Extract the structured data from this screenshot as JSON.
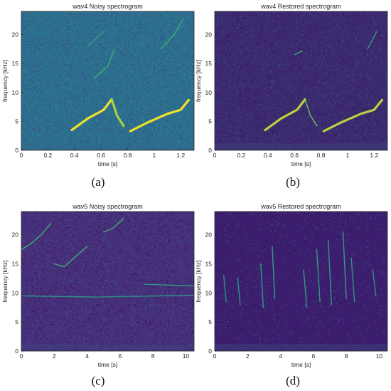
{
  "figure": {
    "captions": [
      "(a)",
      "(b)",
      "(c)",
      "(d)"
    ]
  },
  "chart_data": [
    {
      "type": "heatmap",
      "title": "wav4 Noisy spectrogram",
      "xlabel": "time [s]",
      "ylabel": "frequency [kHz]",
      "xlim": [
        0,
        1.3
      ],
      "ylim": [
        0,
        24
      ],
      "xticks": [
        "0",
        "0.2",
        "0.4",
        "0.6",
        "0.8",
        "1",
        "1.2"
      ],
      "yticks": [
        "0",
        "5",
        "10",
        "15",
        "20"
      ],
      "colormap": "viridis",
      "background": "#2d6e8e",
      "calls": [
        {
          "x": [
            0.38,
            0.5,
            0.62,
            0.68
          ],
          "y": [
            3.5,
            5.5,
            7.0,
            8.8
          ],
          "intensity": 1.0
        },
        {
          "x": [
            0.68,
            0.72,
            0.77
          ],
          "y": [
            8.8,
            6.0,
            4.2
          ],
          "intensity": 0.8
        },
        {
          "x": [
            0.82,
            0.95,
            1.1,
            1.2,
            1.26
          ],
          "y": [
            3.3,
            4.8,
            6.3,
            7.0,
            8.7
          ],
          "intensity": 1.0
        },
        {
          "x": [
            0.55,
            0.65,
            0.7
          ],
          "y": [
            12.5,
            14.5,
            17.5
          ],
          "intensity": 0.45
        },
        {
          "x": [
            1.05,
            1.15,
            1.22
          ],
          "y": [
            17.5,
            20.0,
            22.8
          ],
          "intensity": 0.45
        },
        {
          "x": [
            0.5,
            0.62
          ],
          "y": [
            18.0,
            20.5
          ],
          "intensity": 0.35
        }
      ]
    },
    {
      "type": "heatmap",
      "title": "wav4 Restored spectrogram",
      "xlabel": "time [s]",
      "ylabel": "frequency [kHz]",
      "xlim": [
        0,
        1.3
      ],
      "ylim": [
        0,
        24
      ],
      "xticks": [
        "0",
        "0.2",
        "0.4",
        "0.6",
        "0.8",
        "1",
        "1.2"
      ],
      "yticks": [
        "0",
        "5",
        "10",
        "15",
        "20"
      ],
      "colormap": "viridis",
      "background": "#3b2a6e",
      "calls": [
        {
          "x": [
            0.38,
            0.5,
            0.62,
            0.68
          ],
          "y": [
            3.5,
            5.5,
            7.0,
            8.8
          ],
          "intensity": 0.85
        },
        {
          "x": [
            0.68,
            0.72,
            0.77
          ],
          "y": [
            8.8,
            6.0,
            4.2
          ],
          "intensity": 0.65
        },
        {
          "x": [
            0.82,
            0.95,
            1.1,
            1.2,
            1.26
          ],
          "y": [
            3.3,
            4.8,
            6.3,
            7.0,
            8.7
          ],
          "intensity": 0.85
        },
        {
          "x": [
            0.6,
            0.66
          ],
          "y": [
            16.5,
            17.2
          ],
          "intensity": 0.4
        },
        {
          "x": [
            1.15,
            1.22
          ],
          "y": [
            17.5,
            20.5
          ],
          "intensity": 0.35
        }
      ]
    },
    {
      "type": "heatmap",
      "title": "wav5 Noisy spectrogram",
      "xlabel": "time [s]",
      "ylabel": "frequency [kHz]",
      "xlim": [
        0,
        10.5
      ],
      "ylim": [
        0,
        24
      ],
      "xticks": [
        "0",
        "2",
        "4",
        "6",
        "8",
        "10"
      ],
      "yticks": [
        "0",
        "5",
        "10",
        "15",
        "20"
      ],
      "colormap": "viridis",
      "background": "#46307a",
      "calls": [
        {
          "x": [
            0.0,
            0.6,
            1.2,
            1.8
          ],
          "y": [
            17.5,
            18.5,
            20.0,
            22.0
          ],
          "intensity": 0.45
        },
        {
          "x": [
            2.0,
            2.6,
            3.2,
            4.0
          ],
          "y": [
            15.0,
            14.5,
            16.0,
            18.0
          ],
          "intensity": 0.45
        },
        {
          "x": [
            5.0,
            5.6,
            6.2
          ],
          "y": [
            20.5,
            21.2,
            22.8
          ],
          "intensity": 0.45
        },
        {
          "x": [
            0.0,
            4.5,
            10.5
          ],
          "y": [
            9.5,
            9.3,
            9.6
          ],
          "intensity": 0.3
        },
        {
          "x": [
            7.5,
            10.5
          ],
          "y": [
            11.5,
            11.2
          ],
          "intensity": 0.3
        }
      ]
    },
    {
      "type": "heatmap",
      "title": "wav5 Restored spectrogram",
      "xlabel": "time [s]",
      "ylabel": "frequency [kHz]",
      "xlim": [
        0,
        10.5
      ],
      "ylim": [
        0,
        24
      ],
      "xticks": [
        "0",
        "2",
        "4",
        "6",
        "8",
        "10"
      ],
      "yticks": [
        "0",
        "5",
        "10",
        "15",
        "20"
      ],
      "colormap": "viridis",
      "background": "#3b1f6e",
      "calls": [
        {
          "x": [
            0.55,
            0.7
          ],
          "y": [
            13.0,
            8.5
          ],
          "intensity": 0.3
        },
        {
          "x": [
            1.4,
            1.55
          ],
          "y": [
            12.5,
            8.0
          ],
          "intensity": 0.3
        },
        {
          "x": [
            2.8,
            2.95
          ],
          "y": [
            15.0,
            7.5
          ],
          "intensity": 0.35
        },
        {
          "x": [
            3.5,
            3.65
          ],
          "y": [
            18.0,
            9.0
          ],
          "intensity": 0.35
        },
        {
          "x": [
            5.4,
            5.6
          ],
          "y": [
            14.0,
            7.5
          ],
          "intensity": 0.35
        },
        {
          "x": [
            6.2,
            6.4
          ],
          "y": [
            17.5,
            8.5
          ],
          "intensity": 0.35
        },
        {
          "x": [
            6.9,
            7.1
          ],
          "y": [
            19.0,
            8.0
          ],
          "intensity": 0.35
        },
        {
          "x": [
            7.8,
            8.0
          ],
          "y": [
            20.5,
            9.0
          ],
          "intensity": 0.35
        },
        {
          "x": [
            8.3,
            8.5
          ],
          "y": [
            16.0,
            8.5
          ],
          "intensity": 0.3
        },
        {
          "x": [
            9.6,
            9.8
          ],
          "y": [
            14.0,
            9.5
          ],
          "intensity": 0.3
        }
      ]
    }
  ]
}
